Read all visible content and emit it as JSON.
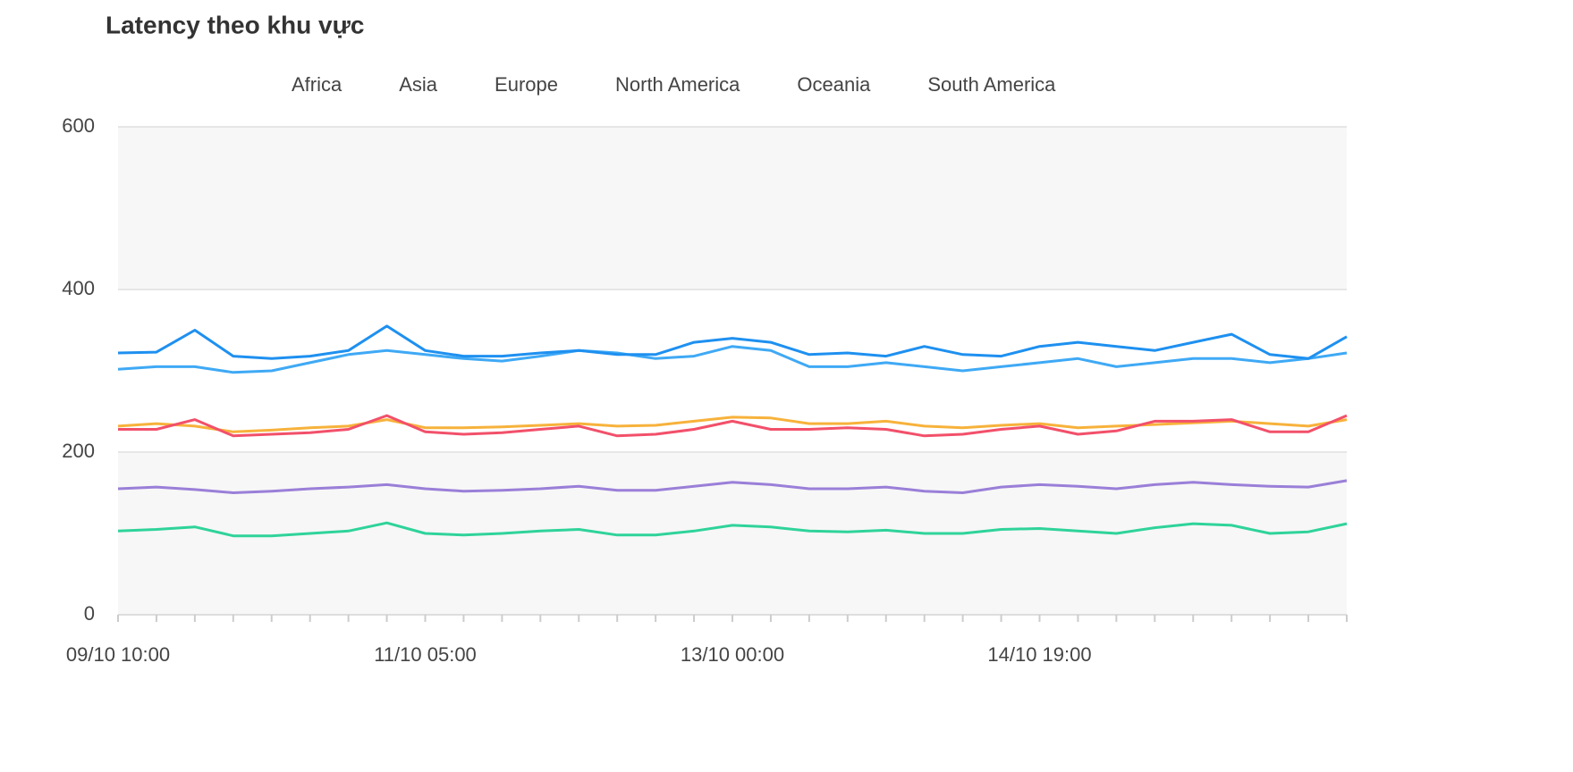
{
  "chart_data": {
    "type": "line",
    "title": "Latency theo khu vực",
    "categories": [
      "09/10 10:00",
      null,
      null,
      null,
      null,
      null,
      null,
      null,
      "11/10 05:00",
      null,
      null,
      null,
      null,
      null,
      null,
      null,
      "13/10 00:00",
      null,
      null,
      null,
      null,
      null,
      null,
      null,
      "14/10 19:00",
      null,
      null,
      null,
      null,
      null,
      null,
      null,
      null
    ],
    "series": [
      {
        "name": "Africa",
        "color": "#f7b23b",
        "values": [
          232,
          235,
          232,
          225,
          227,
          230,
          232,
          240,
          230,
          230,
          231,
          233,
          235,
          232,
          233,
          238,
          243,
          242,
          235,
          235,
          238,
          232,
          230,
          233,
          235,
          230,
          232,
          234,
          236,
          238,
          235,
          232,
          240
        ]
      },
      {
        "name": "Asia",
        "color": "#f2506a",
        "values": [
          228,
          228,
          240,
          220,
          222,
          224,
          228,
          245,
          225,
          222,
          224,
          228,
          232,
          220,
          222,
          228,
          238,
          228,
          228,
          230,
          228,
          220,
          222,
          228,
          232,
          222,
          226,
          238,
          238,
          240,
          225,
          225,
          245
        ]
      },
      {
        "name": "Europe",
        "color": "#9a7fd8",
        "values": [
          155,
          157,
          154,
          150,
          152,
          155,
          157,
          160,
          155,
          152,
          153,
          155,
          158,
          153,
          153,
          158,
          163,
          160,
          155,
          155,
          157,
          152,
          150,
          157,
          160,
          158,
          155,
          160,
          163,
          160,
          158,
          157,
          165
        ]
      },
      {
        "name": "North America",
        "color": "#2fd39a",
        "values": [
          103,
          105,
          108,
          97,
          97,
          100,
          103,
          113,
          100,
          98,
          100,
          103,
          105,
          98,
          98,
          103,
          110,
          108,
          103,
          102,
          104,
          100,
          100,
          105,
          106,
          103,
          100,
          107,
          112,
          110,
          100,
          102,
          112
        ]
      },
      {
        "name": "Oceania",
        "color": "#3fa9f5",
        "values": [
          302,
          305,
          305,
          298,
          300,
          310,
          320,
          325,
          320,
          315,
          312,
          318,
          325,
          322,
          315,
          318,
          330,
          325,
          305,
          305,
          310,
          305,
          300,
          305,
          310,
          315,
          305,
          310,
          315,
          315,
          310,
          315,
          322
        ]
      },
      {
        "name": "South America",
        "color": "#1e90f0",
        "values": [
          322,
          323,
          350,
          318,
          315,
          318,
          325,
          355,
          325,
          318,
          318,
          322,
          325,
          320,
          320,
          335,
          340,
          335,
          320,
          322,
          318,
          330,
          320,
          318,
          330,
          335,
          330,
          325,
          335,
          345,
          320,
          315,
          342
        ]
      }
    ],
    "ylim": [
      0,
      600
    ],
    "yticks": [
      0,
      200,
      400,
      600
    ],
    "grid": true
  }
}
